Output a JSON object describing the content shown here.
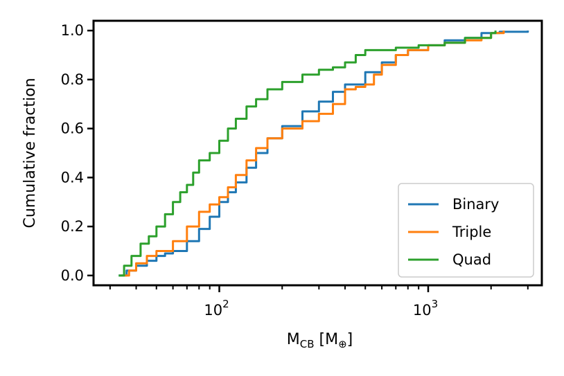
{
  "chart_data": {
    "type": "line",
    "title": "",
    "xlabel": {
      "main": "M",
      "sub": "CB",
      "unit_open": " [M",
      "unit_sub": "⊕",
      "unit_close": "]"
    },
    "ylabel": "Cumulative fraction",
    "x_scale": "log",
    "xlim": [
      25,
      3500
    ],
    "ylim": [
      -0.04,
      1.04
    ],
    "x_major_ticks": [
      {
        "value": 100,
        "base": "10",
        "exp": "2"
      },
      {
        "value": 1000,
        "base": "10",
        "exp": "3"
      }
    ],
    "x_minor_ticks": [
      30,
      40,
      50,
      60,
      70,
      80,
      90,
      200,
      300,
      400,
      500,
      600,
      700,
      800,
      900,
      2000,
      3000
    ],
    "y_ticks": [
      0.0,
      0.2,
      0.4,
      0.6,
      0.8,
      1.0
    ],
    "y_tick_labels": [
      "0.0",
      "0.2",
      "0.4",
      "0.6",
      "0.8",
      "1.0"
    ],
    "grid": false,
    "legend": {
      "placement": "lower-right",
      "entries": [
        "Binary",
        "Triple",
        "Quad"
      ]
    },
    "series": [
      {
        "name": "Binary",
        "color": "#1f77b4",
        "points": [
          [
            33,
            0.0
          ],
          [
            36,
            0.02
          ],
          [
            40,
            0.04
          ],
          [
            45,
            0.06
          ],
          [
            50,
            0.08
          ],
          [
            55,
            0.09
          ],
          [
            60,
            0.1
          ],
          [
            70,
            0.14
          ],
          [
            80,
            0.19
          ],
          [
            90,
            0.24
          ],
          [
            100,
            0.3
          ],
          [
            110,
            0.34
          ],
          [
            120,
            0.38
          ],
          [
            135,
            0.44
          ],
          [
            150,
            0.5
          ],
          [
            170,
            0.56
          ],
          [
            200,
            0.61
          ],
          [
            250,
            0.67
          ],
          [
            300,
            0.71
          ],
          [
            350,
            0.75
          ],
          [
            400,
            0.78
          ],
          [
            500,
            0.83
          ],
          [
            600,
            0.87
          ],
          [
            700,
            0.9
          ],
          [
            800,
            0.92
          ],
          [
            1000,
            0.94
          ],
          [
            1200,
            0.96
          ],
          [
            1500,
            0.97
          ],
          [
            1800,
            0.99
          ],
          [
            2200,
            0.995
          ],
          [
            3000,
            1.0
          ]
        ]
      },
      {
        "name": "Triple",
        "color": "#ff7f0e",
        "points": [
          [
            34,
            0.0
          ],
          [
            37,
            0.02
          ],
          [
            40,
            0.05
          ],
          [
            45,
            0.08
          ],
          [
            50,
            0.1
          ],
          [
            60,
            0.14
          ],
          [
            70,
            0.2
          ],
          [
            80,
            0.26
          ],
          [
            90,
            0.29
          ],
          [
            100,
            0.32
          ],
          [
            110,
            0.36
          ],
          [
            120,
            0.41
          ],
          [
            135,
            0.47
          ],
          [
            150,
            0.52
          ],
          [
            170,
            0.56
          ],
          [
            200,
            0.6
          ],
          [
            250,
            0.63
          ],
          [
            300,
            0.66
          ],
          [
            350,
            0.7
          ],
          [
            400,
            0.76
          ],
          [
            450,
            0.77
          ],
          [
            500,
            0.78
          ],
          [
            550,
            0.82
          ],
          [
            600,
            0.86
          ],
          [
            700,
            0.9
          ],
          [
            800,
            0.92
          ],
          [
            1000,
            0.94
          ],
          [
            1200,
            0.95
          ],
          [
            1500,
            0.96
          ],
          [
            1800,
            0.97
          ],
          [
            2000,
            0.99
          ],
          [
            2300,
            1.0
          ]
        ]
      },
      {
        "name": "Quad",
        "color": "#2ca02c",
        "points": [
          [
            33,
            0.0
          ],
          [
            35,
            0.04
          ],
          [
            38,
            0.08
          ],
          [
            42,
            0.13
          ],
          [
            46,
            0.16
          ],
          [
            50,
            0.2
          ],
          [
            55,
            0.25
          ],
          [
            60,
            0.3
          ],
          [
            65,
            0.34
          ],
          [
            70,
            0.37
          ],
          [
            75,
            0.42
          ],
          [
            80,
            0.47
          ],
          [
            90,
            0.5
          ],
          [
            100,
            0.55
          ],
          [
            110,
            0.6
          ],
          [
            120,
            0.64
          ],
          [
            135,
            0.69
          ],
          [
            150,
            0.72
          ],
          [
            170,
            0.76
          ],
          [
            200,
            0.79
          ],
          [
            250,
            0.82
          ],
          [
            300,
            0.84
          ],
          [
            350,
            0.85
          ],
          [
            400,
            0.87
          ],
          [
            450,
            0.9
          ],
          [
            500,
            0.92
          ],
          [
            700,
            0.93
          ],
          [
            900,
            0.94
          ],
          [
            1200,
            0.95
          ],
          [
            1500,
            0.97
          ],
          [
            2000,
            0.99
          ],
          [
            2100,
            1.0
          ]
        ]
      }
    ]
  }
}
